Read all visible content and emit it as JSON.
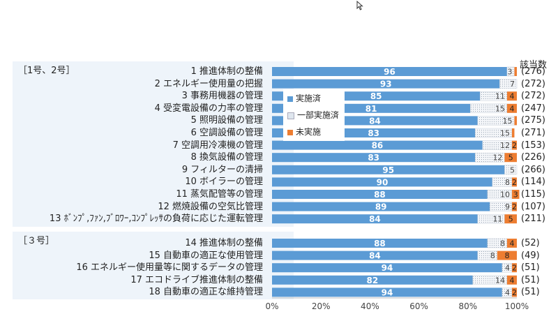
{
  "chart_data": {
    "type": "bar",
    "orientation": "horizontal",
    "stacked": true,
    "unit_header": "該当数",
    "xlim": [
      0,
      100
    ],
    "xticks": [
      "0%",
      "20%",
      "40%",
      "60%",
      "80%",
      "100%"
    ],
    "legend": [
      {
        "key": "done",
        "label": "実施済",
        "color": "#5b9bd5"
      },
      {
        "key": "partial",
        "label": "一部実施済",
        "color": "#dfe6ee"
      },
      {
        "key": "not",
        "label": "未実施",
        "color": "#ed7d31"
      }
    ],
    "groups": [
      {
        "label": "［1号、2号］",
        "rows": [
          {
            "label": "1 推進体制の整備",
            "done": 96,
            "partial": 3,
            "not": 1,
            "partial_label": "3",
            "not_label": "",
            "count": "(276)"
          },
          {
            "label": "2 エネルギー使用量の把握",
            "done": 93,
            "partial": 7,
            "not": 0,
            "partial_label": "7",
            "not_label": "",
            "count": "(272)"
          },
          {
            "label": "3 事務用機器の管理",
            "done": 85,
            "partial": 11,
            "not": 4,
            "partial_label": "11",
            "not_label": "4",
            "count": "(272)"
          },
          {
            "label": "4 受変電設備の力率の管理",
            "done": 81,
            "partial": 15,
            "not": 4,
            "partial_label": "15",
            "not_label": "4",
            "count": "(247)"
          },
          {
            "label": "5 照明設備の管理",
            "done": 84,
            "partial": 15,
            "not": 1,
            "partial_label": "15",
            "not_label": "",
            "count": "(275)"
          },
          {
            "label": "6 空調設備の管理",
            "done": 83,
            "partial": 15,
            "not": 1,
            "partial_label": "15",
            "not_label": "",
            "count": "(271)"
          },
          {
            "label": "7 空調用冷凍機の管理",
            "done": 86,
            "partial": 12,
            "not": 2,
            "partial_label": "12",
            "not_label": "2",
            "count": "(153)"
          },
          {
            "label": "8 換気設備の管理",
            "done": 83,
            "partial": 12,
            "not": 5,
            "partial_label": "12",
            "not_label": "5",
            "count": "(226)"
          },
          {
            "label": "9 フィルターの清掃",
            "done": 95,
            "partial": 5,
            "not": 0,
            "partial_label": "5",
            "not_label": "",
            "count": "(266)"
          },
          {
            "label": "10 ボイラーの管理",
            "done": 90,
            "partial": 8,
            "not": 2,
            "partial_label": "8",
            "not_label": "2",
            "count": "(114)"
          },
          {
            "label": "11 蒸気配管等の管理",
            "done": 88,
            "partial": 10,
            "not": 3,
            "partial_label": "10",
            "not_label": "3",
            "count": "(115)"
          },
          {
            "label": "12 燃焼設備の空気比管理",
            "done": 89,
            "partial": 9,
            "not": 2,
            "partial_label": "9",
            "not_label": "2",
            "count": "(107)"
          },
          {
            "label": "13 ﾎﾞﾝﾌﾟ,ﾌｧﾝ,ﾌﾞﾛﾜｰ,ｺﾝﾌﾟﾚｯｻの負荷に応じた運転管理",
            "done": 84,
            "partial": 11,
            "not": 5,
            "partial_label": "11",
            "not_label": "5",
            "count": "(211)"
          }
        ]
      },
      {
        "label": "［３号］",
        "rows": [
          {
            "label": "14 推進体制の整備",
            "done": 88,
            "partial": 8,
            "not": 4,
            "partial_label": "8",
            "not_label": "4",
            "count": "(52)"
          },
          {
            "label": "15 自動車の適正な使用管理",
            "done": 84,
            "partial": 8,
            "not": 8,
            "partial_label": "8",
            "not_label": "8",
            "count": "(49)"
          },
          {
            "label": "16 エネルギー使用量等に関するデータの管理",
            "done": 94,
            "partial": 4,
            "not": 2,
            "partial_label": "4",
            "not_label": "2",
            "count": "(51)"
          },
          {
            "label": "17 エコドライブ推進体制の整備",
            "done": 82,
            "partial": 14,
            "not": 4,
            "partial_label": "14",
            "not_label": "4",
            "count": "(51)"
          },
          {
            "label": "18 自動車の適正な維持管理",
            "done": 94,
            "partial": 4,
            "not": 2,
            "partial_label": "4",
            "not_label": "2",
            "count": "(51)"
          }
        ]
      }
    ]
  }
}
